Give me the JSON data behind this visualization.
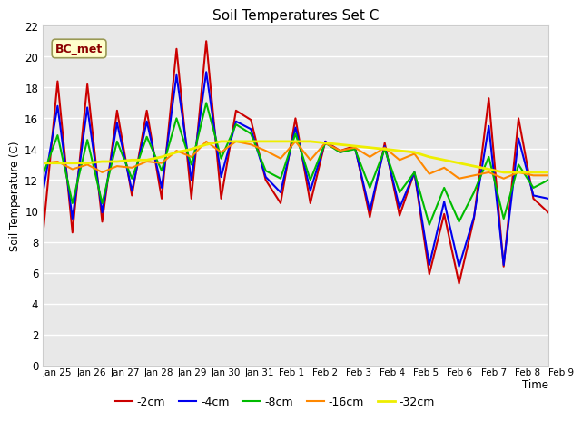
{
  "title": "Soil Temperatures Set C",
  "xlabel": "Time",
  "ylabel": "Soil Temperature (C)",
  "ylim": [
    0,
    22
  ],
  "yticks": [
    0,
    2,
    4,
    6,
    8,
    10,
    12,
    14,
    16,
    18,
    20,
    22
  ],
  "annotation": "BC_met",
  "x_labels": [
    "Jan 25",
    "Jan 26",
    "Jan 27",
    "Jan 28",
    "Jan 29",
    "Jan 30",
    "Jan 31",
    "Feb 1",
    "Feb 2",
    "Feb 3",
    "Feb 4",
    "Feb 5",
    "Feb 6",
    "Feb 7",
    "Feb 8",
    "Feb 9"
  ],
  "series_keys": [
    "-2cm",
    "-4cm",
    "-8cm",
    "-16cm",
    "-32cm"
  ],
  "series": {
    "-2cm": {
      "color": "#cc0000",
      "lw": 1.5
    },
    "-4cm": {
      "color": "#0000ee",
      "lw": 1.5
    },
    "-8cm": {
      "color": "#00bb00",
      "lw": 1.5
    },
    "-16cm": {
      "color": "#ff8800",
      "lw": 1.5
    },
    "-32cm": {
      "color": "#eeee00",
      "lw": 2.0
    }
  },
  "data": {
    "minus2cm": [
      8.3,
      18.4,
      8.6,
      18.2,
      9.3,
      16.5,
      11.0,
      16.5,
      10.8,
      20.5,
      10.8,
      21.0,
      10.8,
      16.5,
      15.9,
      12.0,
      10.5,
      16.0,
      10.5,
      14.5,
      13.9,
      14.2,
      9.6,
      14.4,
      9.7,
      12.5,
      5.9,
      9.8,
      5.3,
      9.5,
      17.3,
      6.4,
      16.0,
      10.8,
      9.9
    ],
    "minus4cm": [
      11.1,
      16.8,
      9.5,
      16.7,
      9.9,
      15.7,
      11.3,
      15.8,
      11.5,
      18.8,
      12.0,
      19.0,
      12.2,
      15.8,
      15.3,
      12.2,
      11.2,
      15.4,
      11.3,
      14.5,
      13.8,
      14.1,
      10.0,
      14.2,
      10.2,
      12.5,
      6.5,
      10.6,
      6.4,
      9.6,
      15.5,
      6.5,
      14.7,
      11.0,
      10.8
    ],
    "minus8cm": [
      12.3,
      14.9,
      10.5,
      14.6,
      10.5,
      14.5,
      12.1,
      14.8,
      12.6,
      16.0,
      13.0,
      17.0,
      13.4,
      15.6,
      15.0,
      12.6,
      12.1,
      15.0,
      12.0,
      14.4,
      13.8,
      14.0,
      11.5,
      14.0,
      11.2,
      12.5,
      9.1,
      11.5,
      9.3,
      11.2,
      13.5,
      9.5,
      13.0,
      11.5,
      12.0
    ],
    "minus16cm": [
      13.1,
      13.2,
      12.7,
      13.0,
      12.5,
      12.9,
      12.8,
      13.2,
      13.1,
      13.9,
      13.5,
      14.5,
      13.8,
      14.5,
      14.3,
      13.9,
      13.4,
      14.5,
      13.3,
      14.4,
      13.9,
      14.1,
      13.5,
      14.1,
      13.3,
      13.7,
      12.4,
      12.8,
      12.1,
      12.3,
      12.5,
      12.1,
      12.5,
      12.3,
      12.3
    ],
    "minus32cm": [
      13.1,
      13.1,
      13.1,
      13.1,
      13.2,
      13.2,
      13.3,
      13.3,
      13.5,
      13.8,
      14.0,
      14.3,
      14.5,
      14.5,
      14.5,
      14.5,
      14.5,
      14.5,
      14.5,
      14.4,
      14.3,
      14.2,
      14.1,
      14.0,
      13.9,
      13.8,
      13.5,
      13.3,
      13.1,
      12.9,
      12.7,
      12.5,
      12.5,
      12.5,
      12.5
    ]
  }
}
